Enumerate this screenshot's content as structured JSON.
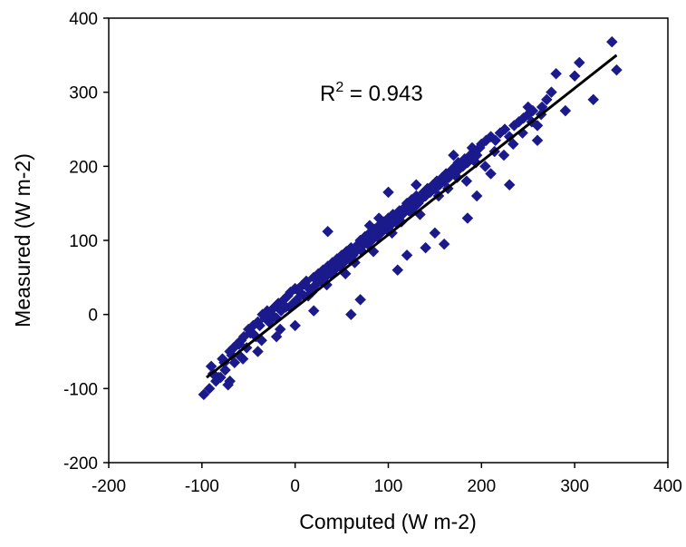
{
  "chart_data": {
    "type": "scatter",
    "title": "",
    "xlabel": "Computed (W m-2)",
    "ylabel": "Measured (W m-2)",
    "xlim": [
      -200,
      400
    ],
    "ylim": [
      -200,
      400
    ],
    "x_ticks": [
      -200,
      -100,
      0,
      100,
      200,
      300,
      400
    ],
    "y_ticks": [
      -200,
      -100,
      0,
      100,
      200,
      300,
      400
    ],
    "x_tick_labels": [
      "-200",
      "-100",
      "0",
      "100",
      "200",
      "300",
      "400"
    ],
    "y_tick_labels": [
      "-200",
      "-100",
      "0",
      "100",
      "200",
      "300",
      "400"
    ],
    "grid": false,
    "legend": "none",
    "marker": "diamond",
    "marker_color": "#1a1a8c",
    "line_color": "#000000",
    "annotation": {
      "base": "R",
      "sup": "2",
      "rest": " = 0.943"
    },
    "trendline": {
      "x": [
        -95,
        345
      ],
      "y": [
        -85,
        350
      ]
    },
    "series": [
      {
        "x": [
          -98,
          -92,
          -88,
          -85,
          -80,
          -78,
          -75,
          -72,
          -70,
          -68,
          -65,
          -62,
          -60,
          -58,
          -55,
          -52,
          -50,
          -48,
          -45,
          -42,
          -40,
          -38,
          -35,
          -32,
          -30,
          -28,
          -25,
          -22,
          -20,
          -18,
          -15,
          -12,
          -10,
          -8,
          -5,
          -2,
          0,
          2,
          5,
          8,
          10,
          12,
          15,
          18,
          20,
          22,
          25,
          28,
          30,
          32,
          35,
          38,
          40,
          42,
          45,
          48,
          50,
          52,
          55,
          58,
          60,
          62,
          65,
          68,
          70,
          72,
          75,
          78,
          80,
          82,
          85,
          88,
          90,
          92,
          95,
          98,
          100,
          102,
          105,
          108,
          110,
          112,
          115,
          118,
          120,
          122,
          125,
          128,
          130,
          132,
          135,
          138,
          140,
          142,
          145,
          148,
          150,
          152,
          155,
          158,
          160,
          162,
          165,
          168,
          170,
          172,
          175,
          178,
          180,
          182,
          185,
          188,
          190,
          192,
          195,
          198,
          200,
          205,
          210,
          215,
          220,
          225,
          230,
          235,
          240,
          245,
          250,
          255,
          260,
          265,
          270,
          275,
          280,
          290,
          300,
          305,
          320,
          340,
          345,
          -90,
          -82,
          -76,
          -66,
          -56,
          -46,
          -36,
          -26,
          -16,
          -6,
          4,
          14,
          24,
          34,
          44,
          54,
          64,
          74,
          84,
          94,
          104,
          114,
          124,
          134,
          144,
          154,
          164,
          174,
          184,
          194,
          204,
          214,
          224,
          234,
          244,
          254,
          264,
          35,
          90,
          100,
          130,
          150,
          160,
          175,
          60,
          70,
          110,
          140,
          185,
          195,
          230,
          260,
          -70,
          -60,
          -40,
          -20,
          0,
          20,
          40,
          50,
          80,
          120,
          170,
          190,
          210,
          250
        ],
        "y": [
          -108,
          -100,
          -80,
          -90,
          -85,
          -60,
          -75,
          -95,
          -50,
          -55,
          -65,
          -40,
          -55,
          -35,
          -30,
          -45,
          -20,
          -25,
          -15,
          -30,
          -10,
          -15,
          0,
          -5,
          5,
          -10,
          0,
          10,
          -5,
          15,
          5,
          20,
          10,
          25,
          30,
          15,
          35,
          20,
          30,
          40,
          25,
          45,
          35,
          30,
          50,
          40,
          55,
          45,
          60,
          50,
          65,
          55,
          70,
          60,
          75,
          65,
          80,
          70,
          85,
          75,
          90,
          80,
          85,
          95,
          100,
          85,
          105,
          95,
          110,
          100,
          115,
          105,
          120,
          110,
          125,
          115,
          130,
          120,
          135,
          125,
          130,
          140,
          135,
          145,
          150,
          140,
          155,
          145,
          160,
          150,
          155,
          165,
          160,
          170,
          165,
          175,
          170,
          180,
          175,
          185,
          180,
          190,
          185,
          195,
          190,
          200,
          195,
          205,
          200,
          210,
          205,
          215,
          210,
          220,
          215,
          225,
          230,
          235,
          240,
          235,
          245,
          250,
          240,
          255,
          260,
          265,
          270,
          275,
          255,
          280,
          290,
          300,
          325,
          275,
          322,
          340,
          290,
          368,
          330,
          -70,
          -85,
          -65,
          -45,
          -60,
          -25,
          -35,
          -5,
          -20,
          10,
          35,
          25,
          45,
          40,
          65,
          55,
          70,
          95,
          85,
          120,
          110,
          125,
          140,
          135,
          165,
          160,
          170,
          185,
          180,
          205,
          200,
          220,
          215,
          230,
          245,
          260,
          270,
          112,
          130,
          165,
          175,
          110,
          95,
          205,
          0,
          20,
          60,
          90,
          130,
          160,
          175,
          235,
          -90,
          -40,
          -50,
          -30,
          -15,
          5,
          55,
          75,
          120,
          80,
          215,
          225,
          190,
          280
        ]
      }
    ]
  }
}
